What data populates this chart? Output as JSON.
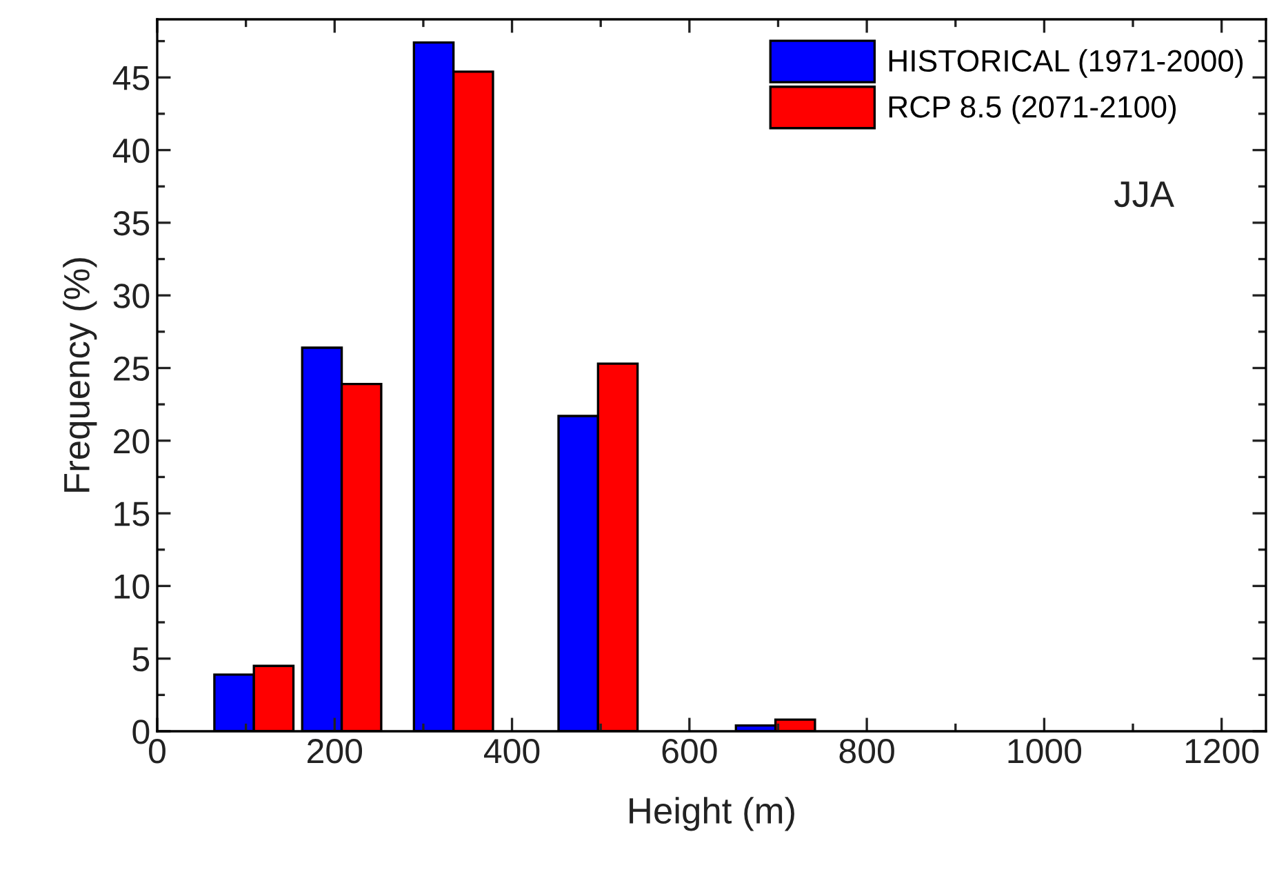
{
  "chart_data": {
    "type": "bar",
    "xlabel": "Height (m)",
    "ylabel": "Frequency (%)",
    "x": [
      109,
      208,
      334,
      497,
      697
    ],
    "series": [
      {
        "name": "HISTORICAL (1971-2000)",
        "color": "#0000ff",
        "values": [
          3.9,
          26.4,
          47.4,
          21.7,
          0.4
        ]
      },
      {
        "name": "RCP 8.5 (2071-2100)",
        "color": "#ff0000",
        "values": [
          4.5,
          23.9,
          45.4,
          25.3,
          0.8
        ]
      }
    ],
    "xlim": [
      0,
      1250
    ],
    "xticks": [
      0,
      200,
      400,
      600,
      800,
      1000,
      1200
    ],
    "ylim": [
      0,
      49
    ],
    "yticks": [
      0,
      5,
      10,
      15,
      20,
      25,
      30,
      35,
      40,
      45
    ],
    "annotations": [
      "JJA"
    ],
    "legend": "top right",
    "grid": false
  }
}
